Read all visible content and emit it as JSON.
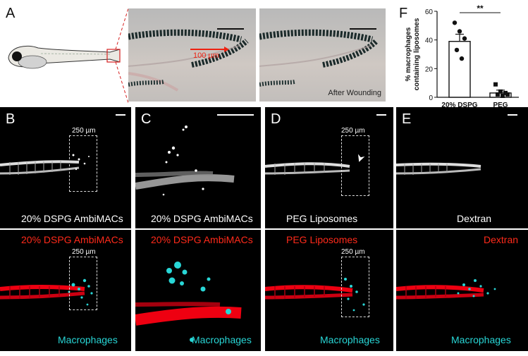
{
  "panel_letters": {
    "a": "A",
    "b": "B",
    "c": "C",
    "d": "D",
    "e": "E",
    "f": "F"
  },
  "panel_a": {
    "scale_label": "100 µm",
    "after_label": "After Wounding"
  },
  "box_label": "250 µm",
  "row_top_captions": {
    "b": "20% DSPG AmbiMACs",
    "c": "20% DSPG AmbiMACs",
    "d": "PEG Liposomes",
    "e": "Dextran"
  },
  "row_bottom_captions": {
    "b": "20% DSPG AmbiMACs",
    "c": "20% DSPG AmbiMACs",
    "d": "PEG Liposomes",
    "e": "Dextran"
  },
  "macrophages_label": "Macrophages",
  "colors": {
    "red": "#ff2a1a",
    "cyan": "#28d6d6"
  },
  "chart_data": {
    "type": "bar",
    "categories": [
      "20% DSPG",
      "PEG"
    ],
    "values": [
      39,
      3
    ],
    "errors": [
      5,
      2
    ],
    "points": [
      [
        52,
        46,
        41,
        33,
        27
      ],
      [
        9,
        4,
        3,
        2,
        1,
        2
      ]
    ],
    "ylabel_line1": "% macrophages",
    "ylabel_line2": "containing liposomes",
    "ylim": [
      0,
      60
    ],
    "yticks": [
      "0",
      "20",
      "40",
      "60"
    ],
    "significance": "**"
  }
}
